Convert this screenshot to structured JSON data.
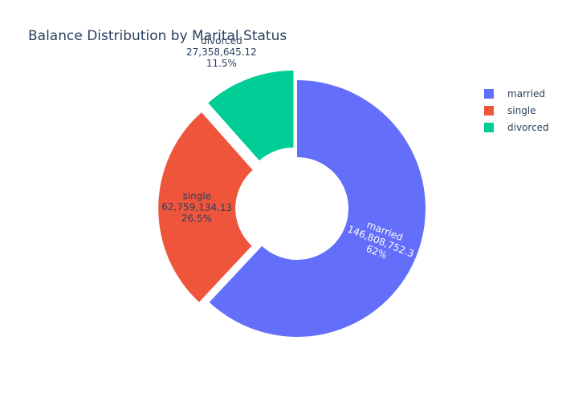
{
  "chart_data": {
    "type": "pie",
    "title": "Balance Distribution by Marital Status",
    "hole": 0.4,
    "slices": [
      {
        "label": "married",
        "value_text": "146,808,752.3",
        "percent_text": "62%",
        "value": 146808752.3,
        "color": "#636efa",
        "pull": 0.0,
        "label_color": "#ffffff",
        "label_mode": "inside"
      },
      {
        "label": "single",
        "value_text": "62,759,134.13",
        "percent_text": "26.5%",
        "value": 62759134.13,
        "color": "#ef553b",
        "pull": 0.08,
        "label_color": "#2a3f5f",
        "label_mode": "inside"
      },
      {
        "label": "divorced",
        "value_text": "27,358,645.12",
        "percent_text": "11.5%",
        "value": 27358645.12,
        "color": "#00cc96",
        "pull": 0.08,
        "label_color": "#2a3f5f",
        "label_mode": "outside"
      }
    ],
    "legend": {
      "position": "top-right",
      "items": [
        {
          "label": "married",
          "color": "#636efa"
        },
        {
          "label": "single",
          "color": "#ef553b"
        },
        {
          "label": "divorced",
          "color": "#00cc96"
        }
      ]
    }
  }
}
